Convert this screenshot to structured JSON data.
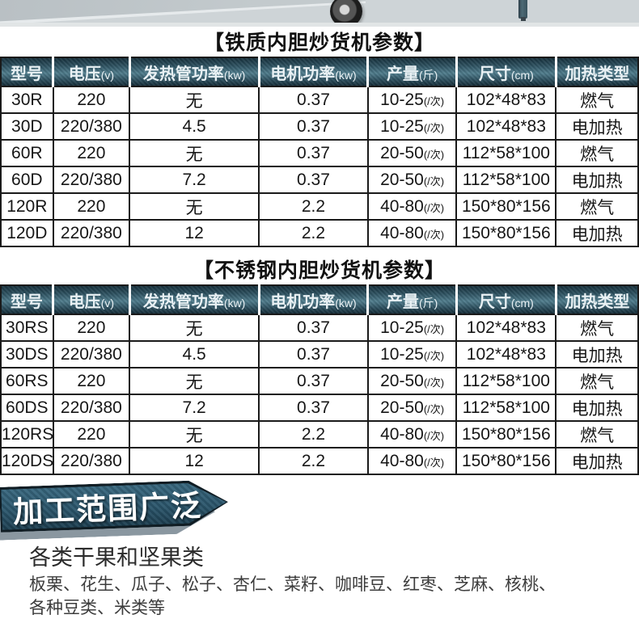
{
  "photo": {
    "caster_wheel_icon": "caster-wheel-icon",
    "gas_pipe_icon": "gas-pipe-icon"
  },
  "headers": [
    {
      "label": "型号",
      "unit": ""
    },
    {
      "label": "电压",
      "unit": "(v)"
    },
    {
      "label": "发热管功率",
      "unit": "(kw)"
    },
    {
      "label": "电机功率",
      "unit": "(kw)"
    },
    {
      "label": "产量",
      "unit": "(斤)"
    },
    {
      "label": "尺寸",
      "unit": "(cm)"
    },
    {
      "label": "加热类型",
      "unit": ""
    }
  ],
  "tables": [
    {
      "title": "【铁质内胆炒货机参数】",
      "rows": [
        {
          "model": "30R",
          "voltage": "220",
          "heater_power": "无",
          "motor_power": "0.37",
          "capacity": "10-25",
          "capacity_unit": "(/次)",
          "size": "102*48*83",
          "heating": "燃气"
        },
        {
          "model": "30D",
          "voltage": "220/380",
          "heater_power": "4.5",
          "motor_power": "0.37",
          "capacity": "10-25",
          "capacity_unit": "(/次)",
          "size": "102*48*83",
          "heating": "电加热"
        },
        {
          "model": "60R",
          "voltage": "220",
          "heater_power": "无",
          "motor_power": "0.37",
          "capacity": "20-50",
          "capacity_unit": "(/次)",
          "size": "112*58*100",
          "heating": "燃气"
        },
        {
          "model": "60D",
          "voltage": "220/380",
          "heater_power": "7.2",
          "motor_power": "0.37",
          "capacity": "20-50",
          "capacity_unit": "(/次)",
          "size": "112*58*100",
          "heating": "电加热"
        },
        {
          "model": "120R",
          "voltage": "220",
          "heater_power": "无",
          "motor_power": "2.2",
          "capacity": "40-80",
          "capacity_unit": "(/次)",
          "size": "150*80*156",
          "heating": "燃气"
        },
        {
          "model": "120D",
          "voltage": "220/380",
          "heater_power": "12",
          "motor_power": "2.2",
          "capacity": "40-80",
          "capacity_unit": "(/次)",
          "size": "150*80*156",
          "heating": "电加热"
        }
      ]
    },
    {
      "title": "【不锈钢内胆炒货机参数】",
      "rows": [
        {
          "model": "30RS",
          "voltage": "220",
          "heater_power": "无",
          "motor_power": "0.37",
          "capacity": "10-25",
          "capacity_unit": "(/次)",
          "size": "102*48*83",
          "heating": "燃气"
        },
        {
          "model": "30DS",
          "voltage": "220/380",
          "heater_power": "4.5",
          "motor_power": "0.37",
          "capacity": "10-25",
          "capacity_unit": "(/次)",
          "size": "102*48*83",
          "heating": "电加热"
        },
        {
          "model": "60RS",
          "voltage": "220",
          "heater_power": "无",
          "motor_power": "0.37",
          "capacity": "20-50",
          "capacity_unit": "(/次)",
          "size": "112*58*100",
          "heating": "燃气"
        },
        {
          "model": "60DS",
          "voltage": "220/380",
          "heater_power": "7.2",
          "motor_power": "0.37",
          "capacity": "20-50",
          "capacity_unit": "(/次)",
          "size": "112*58*100",
          "heating": "电加热"
        },
        {
          "model": "120RS",
          "voltage": "220",
          "heater_power": "无",
          "motor_power": "2.2",
          "capacity": "40-80",
          "capacity_unit": "(/次)",
          "size": "150*80*156",
          "heating": "燃气"
        },
        {
          "model": "120DS",
          "voltage": "220/380",
          "heater_power": "12",
          "motor_power": "2.2",
          "capacity": "40-80",
          "capacity_unit": "(/次)",
          "size": "150*80*156",
          "heating": "电加热"
        }
      ]
    }
  ],
  "banner": {
    "label": "加工范围广泛"
  },
  "bottom": {
    "heading": "各类干果和坚果类",
    "line1": "板栗、花生、瓜子、松子、杏仁、菜籽、咖啡豆、红枣、芝麻、核桃、",
    "line2": "各种豆类、米类等"
  },
  "colors": {
    "table_header_bg": "#2e5261",
    "banner_bg": "#2b566c",
    "banner_shadow": "#8a97a0",
    "table_border": "#1a1a1a",
    "photo_strip_bg": "#ced4d7"
  }
}
